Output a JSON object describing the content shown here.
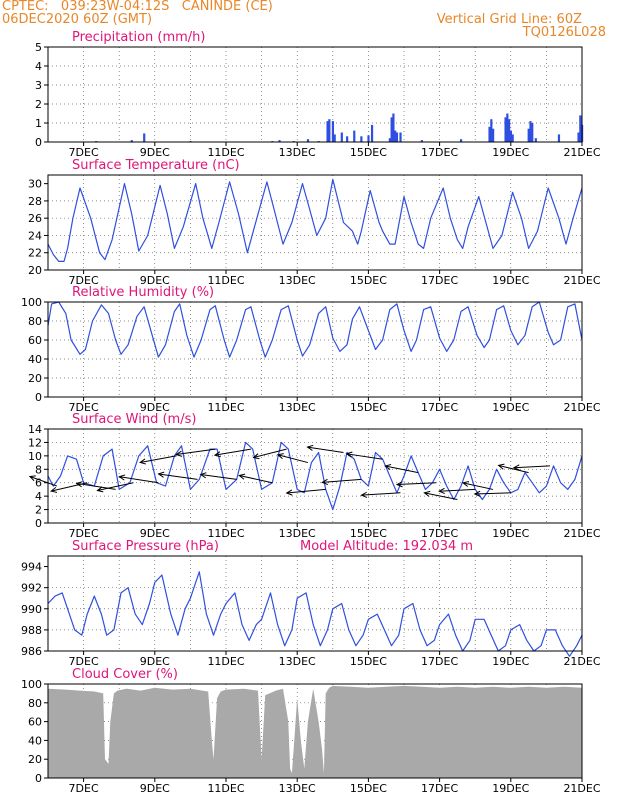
{
  "header": {
    "line1": "CPTEC:   039:23W-04:12S   CANINDE (CE)",
    "line2": "06DEC2020 60Z (GMT)",
    "grid_note": "Vertical Grid Line: 60Z",
    "code": "TQ0126L028"
  },
  "colors": {
    "header": "#e8872a",
    "title": "#e0157a",
    "line": "#2f4fe0",
    "cloud": "#a9a9a9"
  },
  "x_ticks": [
    "7DEC",
    "9DEC",
    "11DEC",
    "13DEC",
    "15DEC",
    "17DEC",
    "19DEC",
    "21DEC"
  ],
  "chart_data": [
    {
      "type": "bar",
      "title": "Precipitation (mm/h)",
      "ylim": [
        0,
        5
      ],
      "yticks": [
        "0",
        "1",
        "2",
        "3",
        "4",
        "5"
      ],
      "x_unit": "day of December",
      "xlim": [
        6.0,
        21.0
      ],
      "series": [
        {
          "x": [
            7.35,
            8.35,
            8.7,
            10.0,
            12.3,
            12.5,
            12.9,
            13.3,
            13.6,
            13.85,
            13.9,
            14.0,
            14.05,
            14.25,
            14.4,
            14.6,
            14.8,
            15.0,
            15.1,
            15.6,
            15.65,
            15.7,
            15.75,
            15.8,
            15.9,
            16.5,
            17.6,
            18.4,
            18.45,
            18.5,
            18.85,
            18.9,
            18.95,
            19.0,
            19.05,
            19.5,
            19.55,
            19.6,
            19.7,
            20.35,
            20.9,
            20.95,
            21.0
          ],
          "values": [
            0.05,
            0.1,
            0.45,
            0.05,
            0.05,
            0.1,
            0.05,
            0.15,
            0.05,
            1.1,
            1.2,
            1.1,
            0.4,
            0.5,
            0.3,
            0.6,
            0.3,
            0.35,
            0.9,
            0.2,
            1.3,
            1.5,
            0.6,
            0.5,
            0.5,
            0.1,
            0.15,
            0.8,
            1.2,
            0.7,
            1.3,
            1.5,
            1.2,
            0.6,
            0.4,
            0.7,
            1.1,
            1.0,
            0.2,
            0.4,
            0.5,
            1.4,
            0.9
          ]
        }
      ]
    },
    {
      "type": "line",
      "title": "Surface Temperature (nC)",
      "ylim": [
        20,
        31
      ],
      "yticks": [
        "20",
        "22",
        "24",
        "26",
        "28",
        "30"
      ],
      "x_unit": "day of December",
      "xlim": [
        6.0,
        21.0
      ],
      "series": [
        {
          "x": [
            6.0,
            6.15,
            6.3,
            6.45,
            6.55,
            6.7,
            6.9,
            7.2,
            7.45,
            7.6,
            7.8,
            8.15,
            8.35,
            8.55,
            8.8,
            9.15,
            9.35,
            9.55,
            9.8,
            10.15,
            10.35,
            10.6,
            10.8,
            11.1,
            11.35,
            11.6,
            11.8,
            12.15,
            12.35,
            12.6,
            12.85,
            13.15,
            13.35,
            13.55,
            13.8,
            14.0,
            14.3,
            14.55,
            14.7,
            14.8,
            15.05,
            15.3,
            15.4,
            15.6,
            15.75,
            16.0,
            16.2,
            16.4,
            16.55,
            16.75,
            17.1,
            17.3,
            17.5,
            17.65,
            17.8,
            18.1,
            18.3,
            18.5,
            18.75,
            19.05,
            19.3,
            19.5,
            19.75,
            20.05,
            20.35,
            20.55,
            20.75,
            21.0
          ],
          "values": [
            23.0,
            21.8,
            21.0,
            21.0,
            22.5,
            26.0,
            29.5,
            26.0,
            22.0,
            21.2,
            23.5,
            30.0,
            26.5,
            22.2,
            24.0,
            29.8,
            26.5,
            22.5,
            25.0,
            30.0,
            26.0,
            22.5,
            25.5,
            30.2,
            26.5,
            22.0,
            25.0,
            30.2,
            27.0,
            23.0,
            25.5,
            30.0,
            27.0,
            24.0,
            26.0,
            30.5,
            25.5,
            24.5,
            23.0,
            24.5,
            29.2,
            25.5,
            24.5,
            23.0,
            23.0,
            28.5,
            25.5,
            23.0,
            22.5,
            26.0,
            29.5,
            26.0,
            23.5,
            22.5,
            25.0,
            28.5,
            25.5,
            22.5,
            24.0,
            29.0,
            26.0,
            22.5,
            24.5,
            29.5,
            26.0,
            23.0,
            26.0,
            29.5
          ]
        }
      ]
    },
    {
      "type": "line",
      "title": "Relative Humidity (%)",
      "ylim": [
        0,
        100
      ],
      "yticks": [
        "0",
        "20",
        "40",
        "60",
        "80",
        "100"
      ],
      "x_unit": "day of December",
      "xlim": [
        6.0,
        21.0
      ],
      "series": [
        {
          "x": [
            6.0,
            6.1,
            6.3,
            6.5,
            6.65,
            6.9,
            7.05,
            7.25,
            7.5,
            7.7,
            7.9,
            8.05,
            8.25,
            8.5,
            8.7,
            8.95,
            9.1,
            9.3,
            9.55,
            9.7,
            9.9,
            10.1,
            10.3,
            10.55,
            10.7,
            10.95,
            11.1,
            11.3,
            11.55,
            11.7,
            11.95,
            12.1,
            12.3,
            12.55,
            12.75,
            13.0,
            13.15,
            13.35,
            13.6,
            13.8,
            14.0,
            14.2,
            14.4,
            14.55,
            14.75,
            15.0,
            15.2,
            15.4,
            15.6,
            15.8,
            16.0,
            16.2,
            16.35,
            16.55,
            16.75,
            17.0,
            17.2,
            17.4,
            17.6,
            17.8,
            18.05,
            18.25,
            18.4,
            18.6,
            18.8,
            19.0,
            19.2,
            19.4,
            19.6,
            19.8,
            20.05,
            20.2,
            20.4,
            20.6,
            20.8,
            21.0
          ],
          "values": [
            75,
            98,
            100,
            88,
            60,
            45,
            50,
            80,
            97,
            88,
            60,
            45,
            55,
            85,
            95,
            62,
            42,
            55,
            90,
            98,
            65,
            42,
            60,
            92,
            96,
            60,
            42,
            60,
            92,
            95,
            60,
            42,
            60,
            92,
            96,
            60,
            43,
            55,
            88,
            95,
            62,
            48,
            55,
            82,
            95,
            70,
            50,
            60,
            92,
            98,
            70,
            48,
            60,
            92,
            95,
            62,
            48,
            60,
            90,
            95,
            65,
            52,
            60,
            92,
            96,
            70,
            55,
            65,
            95,
            100,
            68,
            55,
            60,
            95,
            98,
            60
          ]
        }
      ]
    },
    {
      "type": "line",
      "title": "Surface Wind (m/s)",
      "ylim": [
        0,
        14
      ],
      "yticks": [
        "0",
        "2",
        "4",
        "6",
        "8",
        "10",
        "12",
        "14"
      ],
      "x_unit": "day of December",
      "xlim": [
        6.0,
        21.0
      ],
      "series": [
        {
          "x": [
            6.0,
            6.15,
            6.35,
            6.55,
            6.8,
            7.0,
            7.3,
            7.55,
            7.8,
            8.0,
            8.3,
            8.55,
            8.8,
            9.05,
            9.3,
            9.55,
            9.75,
            10.0,
            10.25,
            10.55,
            10.75,
            11.0,
            11.3,
            11.55,
            11.75,
            12.0,
            12.3,
            12.55,
            12.75,
            13.0,
            13.2,
            13.4,
            13.6,
            13.8,
            14.0,
            14.2,
            14.4,
            14.6,
            14.8,
            15.0,
            15.2,
            15.4,
            15.6,
            15.8,
            16.0,
            16.2,
            16.4,
            16.6,
            16.8,
            17.0,
            17.2,
            17.4,
            17.6,
            17.8,
            18.0,
            18.2,
            18.4,
            18.6,
            18.8,
            19.0,
            19.2,
            19.4,
            19.6,
            19.8,
            20.0,
            20.2,
            20.4,
            20.6,
            20.8,
            21.0
          ],
          "values": [
            7.0,
            5.5,
            7.0,
            10.0,
            9.5,
            6.0,
            5.5,
            10.0,
            11.0,
            5.0,
            6.0,
            10.0,
            11.5,
            6.0,
            5.5,
            10.0,
            11.5,
            5.0,
            6.5,
            11.0,
            11.0,
            5.0,
            6.5,
            12.0,
            11.0,
            5.0,
            6.0,
            12.0,
            11.0,
            5.0,
            4.5,
            9.0,
            10.5,
            5.0,
            2.0,
            5.5,
            10.5,
            9.5,
            6.5,
            5.5,
            10.5,
            9.5,
            7.0,
            4.5,
            7.0,
            10.0,
            7.5,
            5.0,
            6.0,
            8.0,
            5.5,
            3.5,
            5.5,
            8.5,
            5.0,
            3.5,
            5.0,
            8.0,
            6.0,
            4.5,
            5.0,
            7.5,
            6.0,
            4.5,
            5.5,
            8.5,
            6.0,
            5.0,
            6.5,
            10.0
          ]
        }
      ],
      "vectors": [
        {
          "x": 6.25,
          "dx": -0.9,
          "dy": 1.6
        },
        {
          "x": 7.1,
          "dx": -1.2,
          "dy": -1.4
        },
        {
          "x": 7.9,
          "dx": -1.3,
          "dy": 1.0
        },
        {
          "x": 8.4,
          "dx": -1.2,
          "dy": -1.3
        },
        {
          "x": 9.1,
          "dx": -1.3,
          "dy": 1.0
        },
        {
          "x": 9.6,
          "dx": -1.2,
          "dy": -1.1
        },
        {
          "x": 10.2,
          "dx": -1.3,
          "dy": 0.9
        },
        {
          "x": 10.7,
          "dx": -1.3,
          "dy": -0.9
        },
        {
          "x": 11.3,
          "dx": -1.2,
          "dy": 0.8
        },
        {
          "x": 11.7,
          "dx": -1.2,
          "dy": -1.0
        },
        {
          "x": 12.3,
          "dx": -1.1,
          "dy": 1.2
        },
        {
          "x": 12.7,
          "dx": -1.1,
          "dy": -1.4
        },
        {
          "x": 13.3,
          "dx": -1.0,
          "dy": 1.3
        },
        {
          "x": 13.8,
          "dx": -1.3,
          "dy": -0.6
        },
        {
          "x": 14.3,
          "dx": -1.2,
          "dy": 0.9
        },
        {
          "x": 14.8,
          "dx": -1.3,
          "dy": -0.5
        },
        {
          "x": 15.4,
          "dx": -1.2,
          "dy": 0.9
        },
        {
          "x": 15.9,
          "dx": -1.3,
          "dy": -0.4
        },
        {
          "x": 16.4,
          "dx": -1.1,
          "dy": 1.1
        },
        {
          "x": 16.9,
          "dx": -1.3,
          "dy": -0.3
        },
        {
          "x": 17.5,
          "dx": -1.1,
          "dy": 1.1
        },
        {
          "x": 18.0,
          "dx": -1.2,
          "dy": -0.3
        },
        {
          "x": 18.5,
          "dx": -1.0,
          "dy": 1.1
        },
        {
          "x": 19.0,
          "dx": -1.2,
          "dy": -0.2
        },
        {
          "x": 19.5,
          "dx": -1.0,
          "dy": 1.2
        },
        {
          "x": 20.1,
          "dx": -1.2,
          "dy": -0.3
        }
      ]
    },
    {
      "type": "line",
      "title": "Surface Pressure (hPa)",
      "annotation": "Model Altitude: 192.034 m",
      "ylim": [
        986,
        995
      ],
      "yticks": [
        "986",
        "988",
        "990",
        "992",
        "994"
      ],
      "x_unit": "day of December",
      "xlim": [
        6.0,
        21.0
      ],
      "series": [
        {
          "x": [
            6.0,
            6.2,
            6.4,
            6.55,
            6.75,
            6.95,
            7.1,
            7.3,
            7.5,
            7.65,
            7.85,
            8.05,
            8.25,
            8.45,
            8.65,
            8.85,
            9.0,
            9.2,
            9.45,
            9.65,
            9.85,
            10.0,
            10.25,
            10.45,
            10.65,
            10.85,
            11.0,
            11.25,
            11.45,
            11.65,
            11.85,
            12.0,
            12.25,
            12.45,
            12.65,
            12.85,
            13.0,
            13.25,
            13.45,
            13.65,
            13.85,
            14.0,
            14.25,
            14.45,
            14.65,
            14.85,
            15.0,
            15.25,
            15.45,
            15.65,
            15.85,
            16.0,
            16.25,
            16.45,
            16.65,
            16.85,
            17.0,
            17.25,
            17.45,
            17.65,
            17.85,
            18.0,
            18.25,
            18.45,
            18.65,
            18.85,
            19.0,
            19.25,
            19.45,
            19.65,
            19.85,
            20.0,
            20.25,
            20.45,
            20.65,
            20.85,
            21.0
          ],
          "values": [
            990.5,
            991.2,
            991.5,
            990.0,
            988.0,
            987.5,
            989.5,
            991.2,
            989.5,
            987.5,
            988.0,
            991.5,
            992.0,
            989.5,
            988.5,
            990.5,
            992.5,
            993.2,
            989.5,
            987.5,
            990.0,
            991.0,
            993.5,
            989.5,
            987.5,
            989.5,
            990.5,
            991.5,
            988.5,
            987.0,
            988.5,
            989.0,
            991.5,
            988.5,
            986.5,
            988.0,
            991.0,
            991.5,
            988.5,
            986.5,
            988.0,
            990.0,
            990.5,
            988.0,
            986.5,
            987.5,
            989.0,
            989.5,
            988.0,
            986.5,
            987.5,
            990.0,
            990.5,
            988.0,
            986.5,
            987.0,
            988.5,
            989.5,
            987.5,
            986.0,
            987.0,
            989.0,
            989.0,
            987.5,
            986.0,
            986.5,
            988.0,
            988.5,
            987.0,
            986.0,
            986.5,
            988.0,
            988.0,
            986.5,
            985.5,
            986.5,
            987.5
          ]
        }
      ]
    },
    {
      "type": "area",
      "title": "Cloud Cover (%)",
      "ylim": [
        0,
        100
      ],
      "yticks": [
        "0",
        "20",
        "40",
        "60",
        "80",
        "100"
      ],
      "x_unit": "day of December",
      "xlim": [
        6.0,
        21.0
      ],
      "series": [
        {
          "x": [
            6.0,
            6.5,
            6.9,
            7.3,
            7.55,
            7.6,
            7.7,
            7.75,
            7.85,
            7.95,
            8.2,
            8.6,
            9.0,
            9.5,
            10.0,
            10.5,
            10.6,
            10.65,
            10.75,
            10.85,
            11.0,
            11.5,
            11.9,
            12.0,
            12.1,
            12.4,
            12.6,
            12.75,
            12.8,
            12.85,
            12.9,
            13.0,
            13.1,
            13.2,
            13.3,
            13.45,
            13.6,
            13.7,
            13.75,
            13.8,
            13.9,
            14.0,
            14.5,
            15.0,
            15.5,
            16.0,
            16.5,
            17.0,
            17.5,
            18.0,
            18.5,
            19.0,
            19.5,
            20.0,
            20.5,
            21.0
          ],
          "values": [
            95,
            94,
            93,
            92,
            90,
            20,
            15,
            60,
            90,
            93,
            95,
            93,
            96,
            94,
            95,
            92,
            40,
            20,
            85,
            92,
            94,
            95,
            93,
            20,
            88,
            93,
            95,
            60,
            10,
            5,
            30,
            85,
            40,
            10,
            60,
            95,
            60,
            30,
            5,
            90,
            96,
            98,
            97,
            96,
            97,
            98,
            97,
            96,
            97,
            96,
            97,
            96,
            97,
            96,
            97,
            96
          ]
        }
      ]
    }
  ]
}
